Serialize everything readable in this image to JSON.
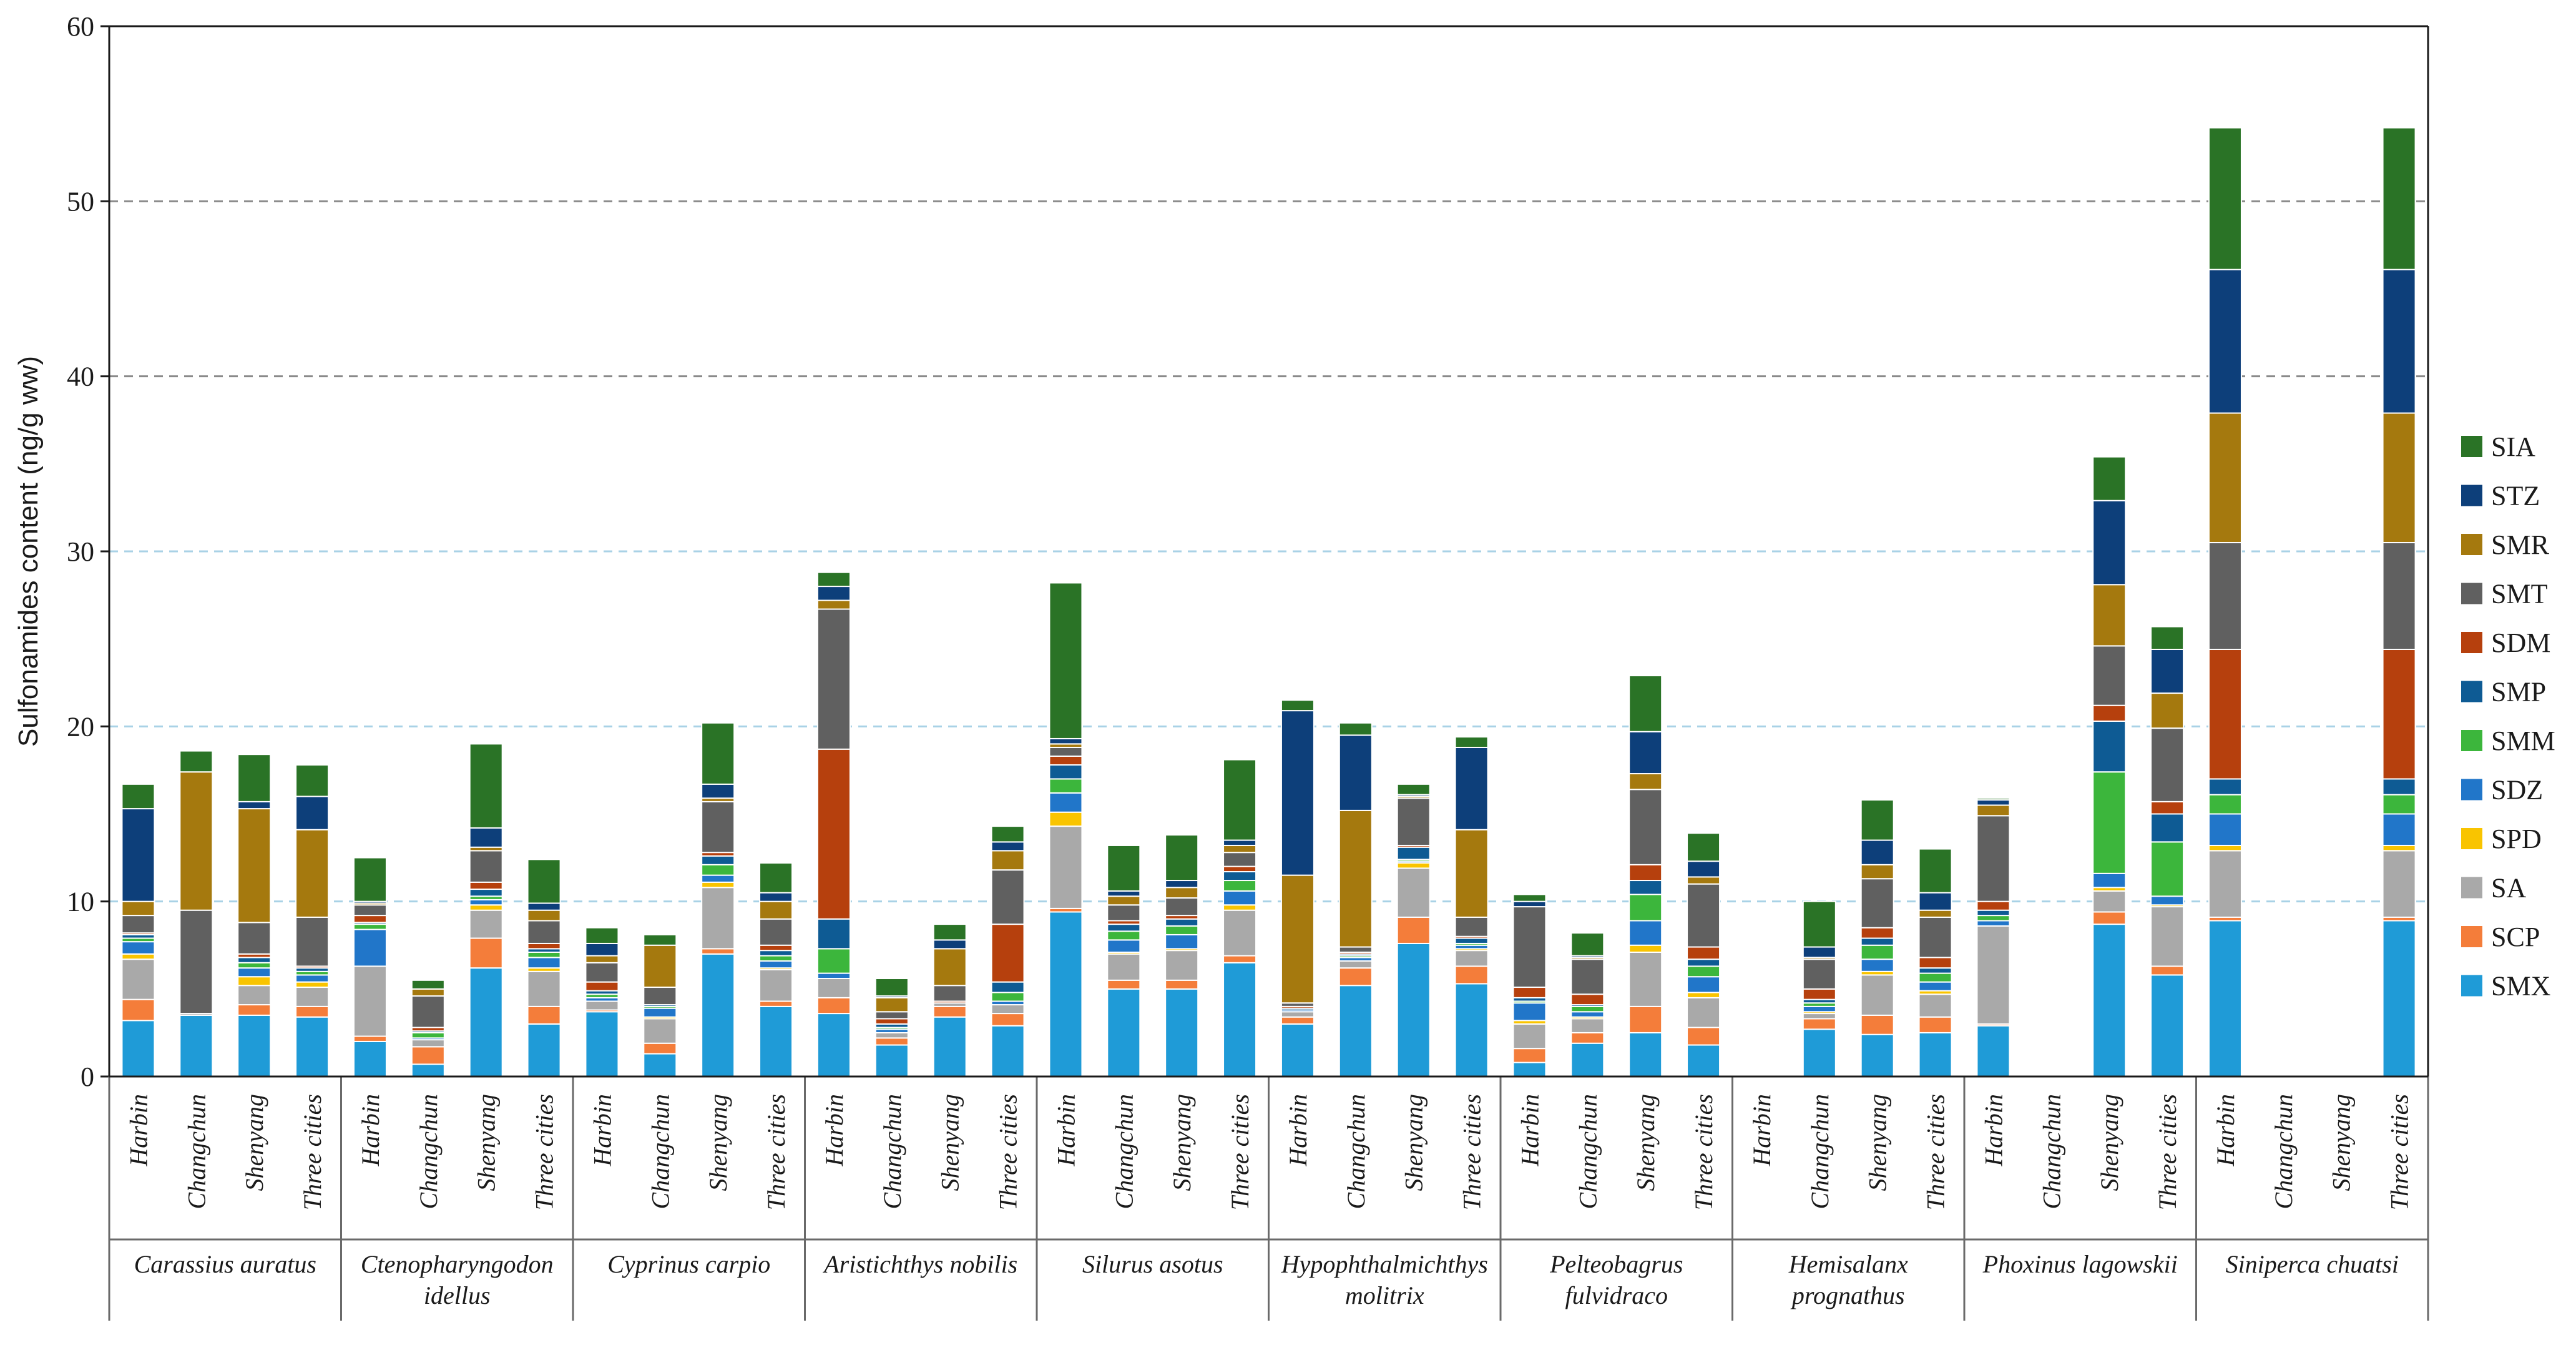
{
  "chart_data": {
    "type": "bar",
    "stacked": true,
    "title": "",
    "ylabel": "Sulfonamides content (ng/g ww)",
    "xlabel": "",
    "ylim": [
      0,
      60
    ],
    "yticks": [
      0,
      10,
      20,
      30,
      40,
      50,
      60
    ],
    "grid": "dashed horizontal",
    "legend_position": "right",
    "compounds": [
      "SMX",
      "SCP",
      "SA",
      "SPD",
      "SDZ",
      "SMM",
      "SMP",
      "SDM",
      "SMT",
      "SMR",
      "STZ",
      "SIA"
    ],
    "colors": {
      "SMX": "#1f9bd7",
      "SCP": "#f47d3a",
      "SA": "#a9a9a9",
      "SPD": "#f9c400",
      "SDZ": "#2176c9",
      "SMM": "#3cb63c",
      "SMP": "#0e5b94",
      "SDM": "#b6400d",
      "SMT": "#606060",
      "SMR": "#a5790e",
      "STZ": "#0d3f7a",
      "SIA": "#2a7326"
    },
    "cities": [
      "Harbin",
      "Changchun",
      "Shenyang",
      "Three cities"
    ],
    "species": [
      {
        "name_lines": [
          "Carassius auratus"
        ],
        "bars": [
          {
            "city": "Harbin",
            "values": [
              3.2,
              1.2,
              2.3,
              0.3,
              0.7,
              0.2,
              0.2,
              0.1,
              1.0,
              0.8,
              5.3,
              1.4
            ]
          },
          {
            "city": "Changchun",
            "values": [
              3.5,
              0.0,
              0.1,
              0.0,
              0.0,
              0.0,
              0.0,
              0.0,
              5.9,
              7.9,
              0.0,
              1.2
            ]
          },
          {
            "city": "Shenyang",
            "values": [
              3.5,
              0.6,
              1.1,
              0.5,
              0.5,
              0.3,
              0.3,
              0.2,
              1.8,
              6.5,
              0.4,
              2.7
            ]
          },
          {
            "city": "Three cities",
            "values": [
              3.4,
              0.6,
              1.1,
              0.3,
              0.4,
              0.2,
              0.2,
              0.1,
              2.8,
              5.0,
              1.9,
              1.8
            ]
          }
        ]
      },
      {
        "name_lines": [
          "Ctenopharyngodon",
          "idellus"
        ],
        "bars": [
          {
            "city": "Harbin",
            "values": [
              2.0,
              0.3,
              4.0,
              0.0,
              2.1,
              0.3,
              0.1,
              0.4,
              0.6,
              0.1,
              0.1,
              2.5
            ]
          },
          {
            "city": "Changchun",
            "values": [
              0.7,
              1.0,
              0.4,
              0.0,
              0.1,
              0.3,
              0.1,
              0.2,
              1.8,
              0.4,
              0.0,
              0.5
            ]
          },
          {
            "city": "Shenyang",
            "values": [
              6.2,
              1.7,
              1.6,
              0.3,
              0.3,
              0.2,
              0.4,
              0.4,
              1.8,
              0.2,
              1.1,
              4.8
            ]
          },
          {
            "city": "Three cities",
            "values": [
              3.0,
              1.0,
              2.0,
              0.2,
              0.6,
              0.3,
              0.2,
              0.3,
              1.3,
              0.6,
              0.4,
              2.5
            ]
          }
        ]
      },
      {
        "name_lines": [
          "Cyprinus carpio"
        ],
        "bars": [
          {
            "city": "Harbin",
            "values": [
              3.7,
              0.1,
              0.5,
              0.0,
              0.2,
              0.2,
              0.2,
              0.5,
              1.1,
              0.4,
              0.7,
              0.9
            ]
          },
          {
            "city": "Changchun",
            "values": [
              1.3,
              0.6,
              1.4,
              0.1,
              0.5,
              0.1,
              0.1,
              0.0,
              1.0,
              2.4,
              0.0,
              0.6
            ]
          },
          {
            "city": "Shenyang",
            "values": [
              7.0,
              0.3,
              3.5,
              0.3,
              0.4,
              0.6,
              0.5,
              0.2,
              2.9,
              0.2,
              0.8,
              3.5
            ]
          },
          {
            "city": "Three cities",
            "values": [
              4.0,
              0.3,
              1.8,
              0.1,
              0.4,
              0.3,
              0.3,
              0.3,
              1.5,
              1.0,
              0.5,
              1.7
            ]
          }
        ]
      },
      {
        "name_lines": [
          "Aristichthys nobilis"
        ],
        "bars": [
          {
            "city": "Harbin",
            "values": [
              3.6,
              0.9,
              1.1,
              0.0,
              0.3,
              1.4,
              1.7,
              9.7,
              8.0,
              0.5,
              0.8,
              0.8
            ]
          },
          {
            "city": "Changchun",
            "values": [
              1.8,
              0.4,
              0.3,
              0.0,
              0.2,
              0.1,
              0.2,
              0.3,
              0.4,
              0.8,
              0.1,
              1.0
            ]
          },
          {
            "city": "Shenyang",
            "values": [
              3.4,
              0.6,
              0.2,
              0.0,
              0.0,
              0.0,
              0.0,
              0.1,
              0.9,
              2.1,
              0.5,
              0.9
            ]
          },
          {
            "city": "Three cities",
            "values": [
              2.9,
              0.7,
              0.5,
              0.0,
              0.2,
              0.5,
              0.6,
              3.3,
              3.1,
              1.1,
              0.5,
              0.9
            ]
          }
        ]
      },
      {
        "name_lines": [
          "Silurus asotus"
        ],
        "bars": [
          {
            "city": "Harbin",
            "values": [
              9.4,
              0.2,
              4.7,
              0.8,
              1.1,
              0.8,
              0.8,
              0.5,
              0.5,
              0.2,
              0.3,
              8.9
            ]
          },
          {
            "city": "Changchun",
            "values": [
              5.0,
              0.5,
              1.5,
              0.1,
              0.7,
              0.5,
              0.4,
              0.2,
              0.9,
              0.5,
              0.3,
              2.6
            ]
          },
          {
            "city": "Shenyang",
            "values": [
              5.0,
              0.5,
              1.7,
              0.1,
              0.8,
              0.5,
              0.4,
              0.2,
              1.0,
              0.6,
              0.4,
              2.6
            ]
          },
          {
            "city": "Three cities",
            "values": [
              6.5,
              0.4,
              2.6,
              0.3,
              0.8,
              0.6,
              0.5,
              0.3,
              0.8,
              0.4,
              0.3,
              4.6
            ]
          }
        ]
      },
      {
        "name_lines": [
          "Hypophthalmichthys",
          "molitrix"
        ],
        "bars": [
          {
            "city": "Harbin",
            "values": [
              3.0,
              0.4,
              0.3,
              0.0,
              0.1,
              0.0,
              0.1,
              0.1,
              0.2,
              7.3,
              9.4,
              0.6
            ]
          },
          {
            "city": "Changchun",
            "values": [
              5.2,
              1.0,
              0.4,
              0.0,
              0.2,
              0.1,
              0.1,
              0.1,
              0.3,
              7.8,
              4.3,
              0.7
            ]
          },
          {
            "city": "Shenyang",
            "values": [
              7.6,
              1.5,
              2.8,
              0.3,
              0.1,
              0.1,
              0.7,
              0.1,
              2.7,
              0.1,
              0.1,
              0.6
            ]
          },
          {
            "city": "Three cities",
            "values": [
              5.3,
              1.0,
              0.9,
              0.1,
              0.2,
              0.1,
              0.3,
              0.1,
              1.1,
              5.0,
              4.7,
              0.6
            ]
          }
        ]
      },
      {
        "name_lines": [
          "Pelteobagrus",
          "fulvidraco"
        ],
        "bars": [
          {
            "city": "Harbin",
            "values": [
              0.8,
              0.8,
              1.4,
              0.2,
              1.0,
              0.1,
              0.2,
              0.6,
              4.6,
              0.0,
              0.3,
              0.4
            ]
          },
          {
            "city": "Changchun",
            "values": [
              1.9,
              0.6,
              0.8,
              0.1,
              0.3,
              0.3,
              0.1,
              0.6,
              2.0,
              0.1,
              0.1,
              1.3
            ]
          },
          {
            "city": "Shenyang",
            "values": [
              2.5,
              1.5,
              3.1,
              0.4,
              1.4,
              1.5,
              0.8,
              0.9,
              4.3,
              0.9,
              2.4,
              3.2
            ]
          },
          {
            "city": "Three cities",
            "values": [
              1.8,
              1.0,
              1.7,
              0.3,
              0.9,
              0.6,
              0.4,
              0.7,
              3.6,
              0.4,
              0.9,
              1.6
            ]
          }
        ]
      },
      {
        "name_lines": [
          "Hemisalanx",
          "prognathus"
        ],
        "bars": [
          {
            "city": "Harbin",
            "values": [
              0,
              0,
              0,
              0,
              0,
              0,
              0,
              0,
              0,
              0,
              0,
              0
            ]
          },
          {
            "city": "Changchun",
            "values": [
              2.7,
              0.6,
              0.3,
              0.1,
              0.3,
              0.2,
              0.2,
              0.6,
              1.7,
              0.1,
              0.6,
              2.6
            ]
          },
          {
            "city": "Shenyang",
            "values": [
              2.4,
              1.1,
              2.3,
              0.2,
              0.7,
              0.8,
              0.4,
              0.6,
              2.8,
              0.8,
              1.4,
              2.3
            ]
          },
          {
            "city": "Three cities",
            "values": [
              2.5,
              0.9,
              1.3,
              0.2,
              0.5,
              0.5,
              0.3,
              0.6,
              2.3,
              0.4,
              1.0,
              2.5
            ]
          }
        ]
      },
      {
        "name_lines": [
          "Phoxinus lagowskii"
        ],
        "bars": [
          {
            "city": "Harbin",
            "values": [
              2.9,
              0.1,
              5.6,
              0.0,
              0.3,
              0.3,
              0.3,
              0.5,
              4.9,
              0.6,
              0.3,
              0.1
            ]
          },
          {
            "city": "Changchun",
            "values": [
              0,
              0,
              0,
              0,
              0,
              0,
              0,
              0,
              0,
              0,
              0,
              0
            ]
          },
          {
            "city": "Shenyang",
            "values": [
              8.7,
              0.7,
              1.2,
              0.2,
              0.8,
              5.8,
              2.9,
              0.9,
              3.4,
              3.5,
              4.8,
              2.5
            ]
          },
          {
            "city": "Three cities",
            "values": [
              5.8,
              0.5,
              3.4,
              0.1,
              0.5,
              3.1,
              1.6,
              0.7,
              4.2,
              2.0,
              2.5,
              1.3
            ]
          }
        ]
      },
      {
        "name_lines": [
          "Siniperca chuatsi"
        ],
        "bars": [
          {
            "city": "Harbin",
            "values": [
              8.9,
              0.2,
              3.8,
              0.3,
              1.8,
              1.1,
              0.9,
              7.4,
              6.1,
              7.4,
              8.2,
              8.1
            ]
          },
          {
            "city": "Changchun",
            "values": [
              0,
              0,
              0,
              0,
              0,
              0,
              0,
              0,
              0,
              0,
              0,
              0
            ]
          },
          {
            "city": "Shenyang",
            "values": [
              0,
              0,
              0,
              0,
              0,
              0,
              0,
              0,
              0,
              0,
              0,
              0
            ]
          },
          {
            "city": "Three cities",
            "values": [
              8.9,
              0.2,
              3.8,
              0.3,
              1.8,
              1.1,
              0.9,
              7.4,
              6.1,
              7.4,
              8.2,
              8.1
            ]
          }
        ]
      }
    ]
  }
}
